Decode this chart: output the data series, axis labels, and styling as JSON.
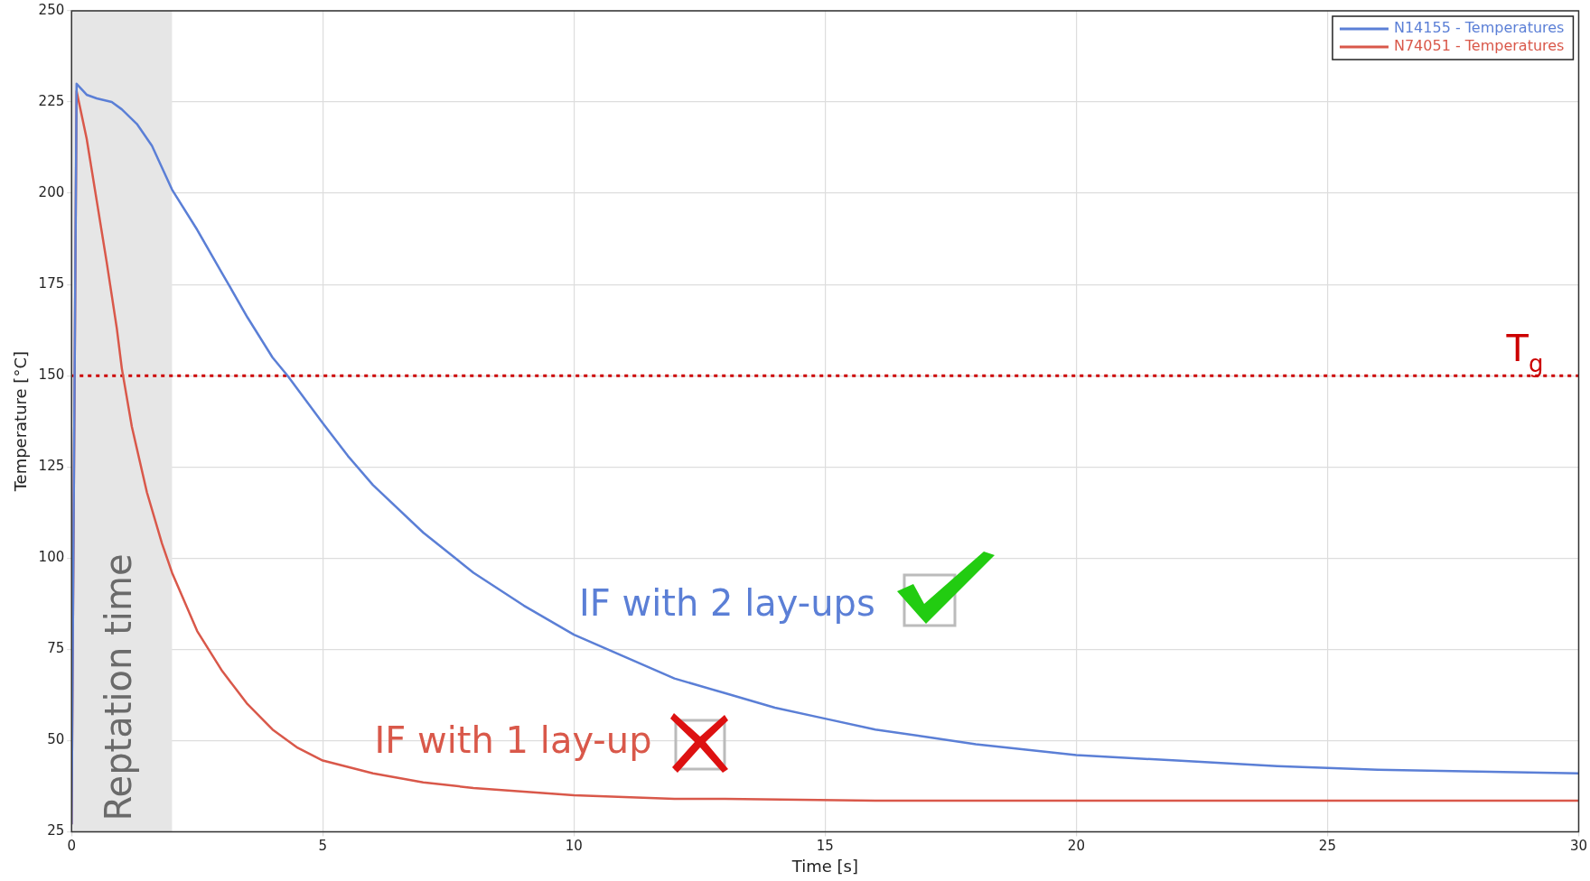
{
  "chart_data": {
    "type": "line",
    "xlabel": "Time [s]",
    "ylabel": "Temperature [°C]",
    "xlim": [
      0,
      30
    ],
    "xticks": [
      0,
      5,
      10,
      15,
      20,
      25,
      30
    ],
    "ylim": [
      25,
      250
    ],
    "yticks": [
      25,
      50,
      75,
      100,
      125,
      150,
      175,
      200,
      225,
      250
    ],
    "grid": true,
    "legend": "top right",
    "marker": "none",
    "line_style": "solid",
    "series": [
      {
        "name": "N14155 - Temperatures",
        "color": "#5b7fd6",
        "x": [
          0,
          0.1,
          0.3,
          0.5,
          0.8,
          1.0,
          1.3,
          1.6,
          2.0,
          2.5,
          3,
          3.5,
          4,
          4.3,
          5,
          5.5,
          6,
          7,
          8,
          9,
          10,
          11,
          12,
          13,
          14,
          15,
          16,
          17,
          18,
          19,
          20,
          22,
          24,
          26,
          28,
          30
        ],
        "values": [
          27,
          230,
          227,
          226,
          225,
          223,
          219,
          213,
          201,
          190,
          178,
          166,
          155,
          150,
          137,
          128,
          120,
          107,
          96,
          87,
          79,
          73,
          67,
          63,
          59,
          56,
          53,
          51,
          49,
          47.5,
          46,
          44.5,
          43,
          42,
          41.5,
          41
        ]
      },
      {
        "name": "N74051 - Temperatures",
        "color": "#d9584a",
        "x": [
          0,
          0.1,
          0.3,
          0.5,
          0.7,
          0.9,
          1.0,
          1.2,
          1.5,
          1.8,
          2.0,
          2.5,
          3,
          3.5,
          4,
          4.5,
          5,
          6,
          7,
          8,
          9,
          10,
          11,
          12,
          13,
          16,
          30
        ],
        "values": [
          27,
          228,
          215,
          198,
          181,
          163,
          152,
          136,
          118,
          104,
          96,
          80,
          69,
          60,
          53,
          48,
          44.5,
          41,
          38.5,
          37,
          36,
          35,
          34.5,
          34,
          34,
          33.5,
          33.5
        ]
      }
    ],
    "ref_lines": [
      {
        "axis": "y",
        "value": 150,
        "label": "T$_{g}$",
        "color": "#cc0000",
        "line_style": "dotted"
      }
    ],
    "bands": [
      {
        "axis": "x",
        "from": 0,
        "to": 2,
        "label": "Reptation time",
        "color": "#e6e6e6"
      }
    ],
    "annotations": [
      "IF with 2 lay-ups",
      "IF with 1 lay-up"
    ]
  }
}
